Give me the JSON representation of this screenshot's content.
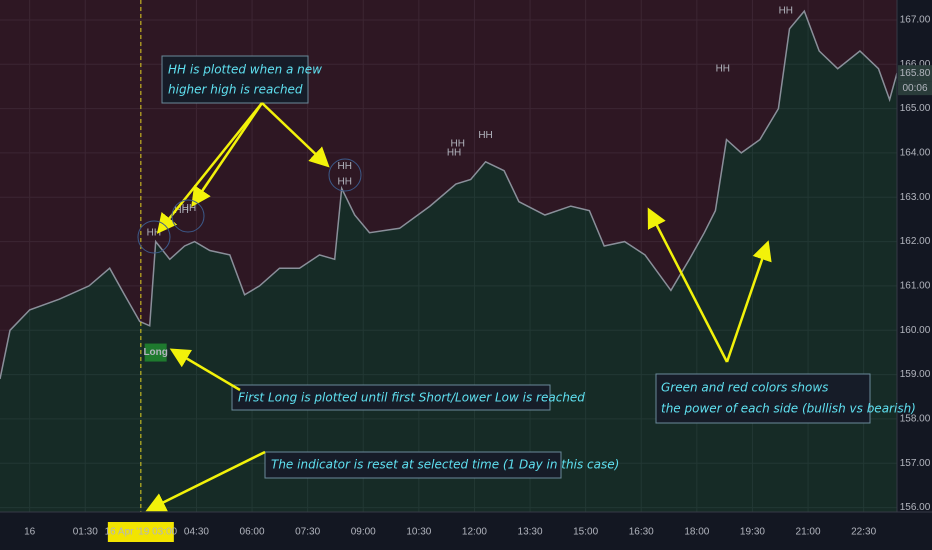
{
  "chart_data": {
    "type": "line",
    "x": [
      -0.8,
      -0.53,
      0,
      0.8,
      1.6,
      2.16,
      2.56,
      2.97,
      3.24,
      3.4,
      3.78,
      4.18,
      4.45,
      4.86,
      5.4,
      5.8,
      6.2,
      6.74,
      7.28,
      7.82,
      8.23,
      8.42,
      8.77,
      9.17,
      9.98,
      10.8,
      11.5,
      11.9,
      12.3,
      12.8,
      13.2,
      13.9,
      14.6,
      15.1,
      15.5,
      16.05,
      16.6,
      17.3,
      17.8,
      18.2,
      18.5,
      18.8,
      19.2,
      19.7,
      20.2,
      20.5,
      20.9,
      21.3,
      21.8,
      22.4,
      22.9,
      23.2,
      23.4
    ],
    "series": [
      {
        "color": "#8a8f9a",
        "values": [
          158.9,
          160.0,
          160.46,
          160.7,
          161.0,
          161.4,
          160.8,
          160.2,
          160.1,
          162.0,
          161.6,
          161.9,
          162.0,
          161.8,
          161.7,
          160.8,
          161.0,
          161.4,
          161.4,
          161.7,
          161.6,
          163.2,
          162.6,
          162.2,
          162.3,
          162.8,
          163.3,
          163.4,
          163.8,
          163.6,
          162.9,
          162.6,
          162.8,
          162.7,
          161.9,
          162.0,
          161.7,
          160.9,
          161.6,
          162.2,
          162.7,
          164.3,
          164.0,
          164.3,
          165.0,
          166.8,
          167.2,
          166.3,
          165.9,
          166.3,
          165.9,
          165.2,
          165.8
        ]
      }
    ],
    "xlim": [
      -0.8,
      23.4
    ],
    "ylim": [
      155.9,
      167.45
    ],
    "xticks": [
      {
        "value": 0,
        "label": "16"
      },
      {
        "value": 1.5,
        "label": "01:30"
      },
      {
        "value": 3,
        "label": "03:00"
      },
      {
        "value": 4.5,
        "label": "04:30"
      },
      {
        "value": 6,
        "label": "06:00"
      },
      {
        "value": 7.5,
        "label": "07:30"
      },
      {
        "value": 9,
        "label": "09:00"
      },
      {
        "value": 10.5,
        "label": "10:30"
      },
      {
        "value": 12,
        "label": "12:00"
      },
      {
        "value": 13.5,
        "label": "13:30"
      },
      {
        "value": 15,
        "label": "15:00"
      },
      {
        "value": 16.5,
        "label": "16:30"
      },
      {
        "value": 18,
        "label": "18:00"
      },
      {
        "value": 19.5,
        "label": "19:30"
      },
      {
        "value": 21,
        "label": "21:00"
      },
      {
        "value": 22.5,
        "label": "22:30"
      }
    ],
    "yticks": [
      {
        "value": 156,
        "label": "156.00"
      },
      {
        "value": 157,
        "label": "157.00"
      },
      {
        "value": 158,
        "label": "158.00"
      },
      {
        "value": 159,
        "label": "159.00"
      },
      {
        "value": 160,
        "label": "160.00"
      },
      {
        "value": 161,
        "label": "161.00"
      },
      {
        "value": 162,
        "label": "162.00"
      },
      {
        "value": 163,
        "label": "163.00"
      },
      {
        "value": 164,
        "label": "164.00"
      },
      {
        "value": 165,
        "label": "165.00"
      },
      {
        "value": 166,
        "label": "166.00"
      },
      {
        "value": 167,
        "label": "167.00"
      }
    ],
    "grid": true,
    "hh_text": "HH",
    "hh_markers": [
      {
        "x": 3.35,
        "y": 162.2
      },
      {
        "x": 4.1,
        "y": 162.7
      },
      {
        "x": 4.3,
        "y": 162.75
      },
      {
        "x": 8.5,
        "y": 163.7
      },
      {
        "x": 8.5,
        "y": 163.35
      },
      {
        "x": 11.45,
        "y": 164.0
      },
      {
        "x": 11.55,
        "y": 164.2
      },
      {
        "x": 12.3,
        "y": 164.4
      },
      {
        "x": 18.7,
        "y": 165.9
      },
      {
        "x": 20.4,
        "y": 167.2
      }
    ],
    "long_signal": {
      "label": "Long",
      "x": 3.4,
      "y": 159.7
    },
    "crosshair": {
      "x": 3,
      "label": "16 Apr '19   03:00"
    },
    "last_price": {
      "value": 165.8,
      "label": "165.80"
    },
    "countdown": "00:06",
    "annotations": {
      "hh": [
        "HH is plotted when a new",
        " higher high is reached"
      ],
      "long": "First Long is plotted until first Short/Lower Low is reached",
      "reset": "The indicator is reset at selected time (1 Day in this case)",
      "colors": [
        "Green and red colors shows",
        "the power of each side (bullish vs bearish)"
      ]
    }
  }
}
